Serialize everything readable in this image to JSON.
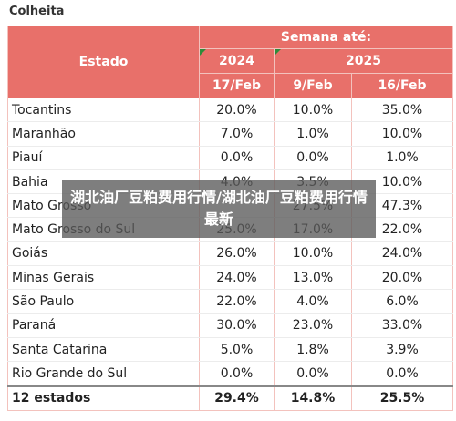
{
  "title": "Colheita",
  "table": {
    "header": {
      "estado": "Estado",
      "semana": "Semana até:",
      "years": [
        "2024",
        "2025"
      ],
      "dates": [
        "17/Feb",
        "9/Feb",
        "16/Feb"
      ]
    },
    "rows": [
      [
        "Tocantins",
        "20.0%",
        "10.0%",
        "35.0%"
      ],
      [
        "Maranhão",
        "7.0%",
        "1.0%",
        "10.0%"
      ],
      [
        "Piauí",
        "0.0%",
        "0.0%",
        "1.0%"
      ],
      [
        "Bahia",
        "4.0%",
        "3.5%",
        "10.0%"
      ],
      [
        "Mato Grosso",
        null,
        "27.5%",
        "47.3%"
      ],
      [
        "Mato Grosso do Sul",
        "25.0%",
        "17.0%",
        "22.0%"
      ],
      [
        "Goiás",
        "26.0%",
        "10.0%",
        "24.0%"
      ],
      [
        "Minas Gerais",
        "24.0%",
        "13.0%",
        "20.0%"
      ],
      [
        "São Paulo",
        "22.0%",
        "4.0%",
        "6.0%"
      ],
      [
        "Paraná",
        "30.0%",
        "23.0%",
        "33.0%"
      ],
      [
        "Santa Catarina",
        "5.0%",
        "1.8%",
        "3.9%"
      ],
      [
        "Rio Grande do Sul",
        "0.0%",
        "0.0%",
        "0.0%"
      ]
    ],
    "total": [
      "12 estados",
      "29.4%",
      "14.8%",
      "25.5%"
    ]
  },
  "banner": "湖北油厂豆粕费用行情/湖北油厂豆粕费用行情最新"
}
